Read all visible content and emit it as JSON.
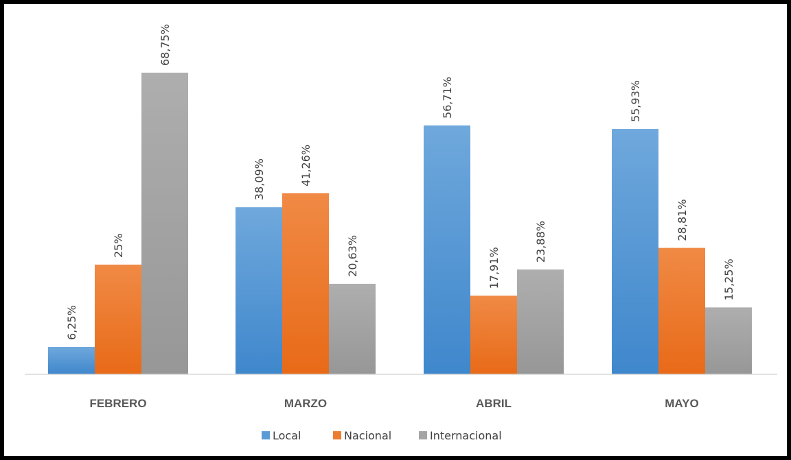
{
  "chart_data": {
    "type": "bar",
    "categories": [
      "FEBRERO",
      "MARZO",
      "ABRIL",
      "MAYO"
    ],
    "series": [
      {
        "name": "Local",
        "values": [
          6.25,
          38.09,
          56.71,
          55.93
        ],
        "labels": [
          "6,25%",
          "38,09%",
          "56,71%",
          "55,93%"
        ],
        "color": "#5B9BD5"
      },
      {
        "name": "Nacional",
        "values": [
          25,
          41.26,
          17.91,
          28.81
        ],
        "labels": [
          "25%",
          "41,26%",
          "17,91%",
          "28,81%"
        ],
        "color": "#ED7D31"
      },
      {
        "name": "Internacional",
        "values": [
          68.75,
          20.63,
          23.88,
          15.25
        ],
        "labels": [
          "68,75%",
          "20,63%",
          "23,88%",
          "15,25%"
        ],
        "color": "#A5A5A5"
      }
    ],
    "ylim": [
      0,
      70
    ],
    "grid": false,
    "legend_position": "bottom"
  }
}
